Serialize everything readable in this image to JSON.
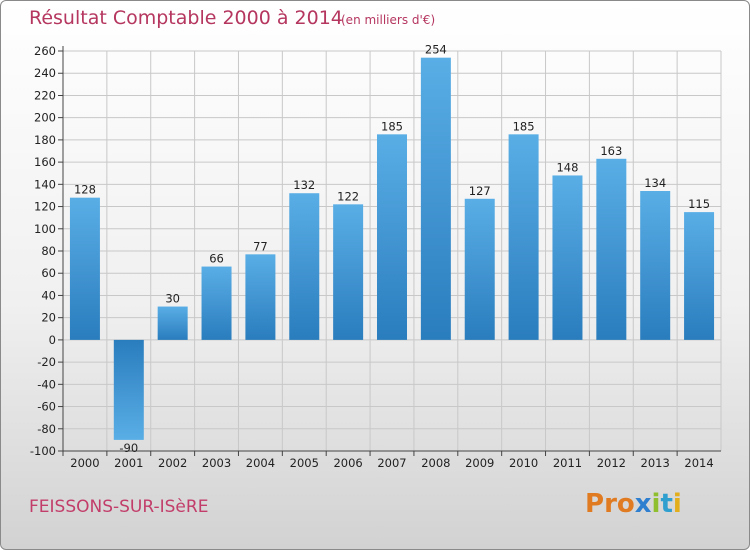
{
  "header": {
    "title": "Résultat Comptable 2000 à 2014",
    "subtitle": "(en milliers d'€)"
  },
  "footer": {
    "commune": "FEISSONS-SUR-ISèRE",
    "logo_letters": [
      "P",
      "r",
      "o",
      "x",
      "i",
      "t",
      "i"
    ],
    "logo_colors": [
      "#e07b22",
      "#e07b22",
      "#e07b22",
      "#2f7fd0",
      "#8fbf2f",
      "#2f9fd0",
      "#e2ae1c"
    ]
  },
  "chart_data": {
    "type": "bar",
    "title": "Résultat Comptable 2000 à 2014",
    "subtitle": "(en milliers d'€)",
    "categories": [
      "2000",
      "2001",
      "2002",
      "2003",
      "2004",
      "2005",
      "2006",
      "2007",
      "2008",
      "2009",
      "2010",
      "2011",
      "2012",
      "2013",
      "2014"
    ],
    "values": [
      128,
      -90,
      30,
      66,
      77,
      132,
      122,
      185,
      254,
      127,
      185,
      148,
      163,
      134,
      115
    ],
    "ylim": [
      -100,
      260
    ],
    "yticks": [
      260,
      240,
      220,
      200,
      180,
      160,
      140,
      120,
      100,
      80,
      60,
      40,
      20,
      0,
      -20,
      -40,
      -60,
      -80,
      -100
    ],
    "grid": true,
    "bar_color_light": "#5aaee6",
    "bar_color_dark": "#2a7dbd",
    "grid_color": "#c8c8c8"
  }
}
